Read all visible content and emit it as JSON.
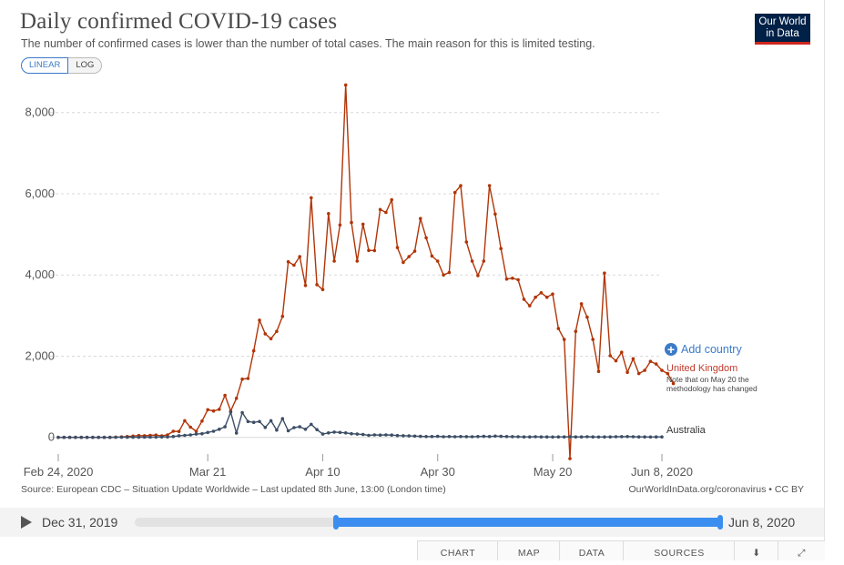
{
  "header": {
    "title": "Daily confirmed COVID-19 cases",
    "subtitle": "The number of confirmed cases is lower than the number of total cases. The main reason for this is limited testing.",
    "logo_line1": "Our World",
    "logo_line2": "in Data"
  },
  "scale_toggle": {
    "linear": "LINEAR",
    "log": "LOG",
    "selected": "LINEAR"
  },
  "chart_data": {
    "type": "line",
    "title": "Daily confirmed COVID-19 cases",
    "x_axis_ticks": [
      "Feb 24, 2020",
      "Mar 21",
      "Apr 10",
      "Apr 30",
      "May 20",
      "Jun 8, 2020"
    ],
    "y_axis_ticks": [
      "0",
      "2,000",
      "4,000",
      "6,000",
      "8,000"
    ],
    "y_tick_values": [
      0,
      2000,
      4000,
      6000,
      8000
    ],
    "ylim": [
      -500,
      8800
    ],
    "x_range_days": [
      0,
      105
    ],
    "x_tick_days": [
      0,
      26,
      46,
      66,
      86,
      105
    ],
    "series": [
      {
        "name": "United Kingdom",
        "color": "#b13507",
        "values": [
          0,
          0,
          0,
          0,
          0,
          0,
          0,
          0,
          0,
          0,
          4,
          10,
          20,
          30,
          45,
          40,
          50,
          55,
          35,
          60,
          150,
          145,
          410,
          250,
          150,
          400,
          680,
          650,
          690,
          1035,
          650,
          960,
          1435,
          1450,
          2130,
          2885,
          2550,
          2430,
          2610,
          2980,
          4325,
          4240,
          4450,
          3740,
          5900,
          3760,
          3640,
          5510,
          4340,
          5230,
          8680,
          5290,
          4340,
          5250,
          4605,
          4600,
          5610,
          5540,
          5850,
          4675,
          4310,
          4450,
          4585,
          5390,
          4915,
          4465,
          4340,
          4000,
          4060,
          6030,
          6200,
          4810,
          4340,
          3985,
          4340,
          6200,
          5500,
          4650,
          3900,
          3920,
          3880,
          3400,
          3240,
          3450,
          3560,
          3450,
          3530,
          2680,
          2410,
          -525,
          2610,
          3290,
          2960,
          2410,
          1625,
          4045,
          2010,
          1885,
          2095,
          1600,
          1935,
          1570,
          1650,
          1870,
          1805,
          1650,
          1570,
          1325
        ],
        "end_label": "United Kingdom",
        "note": "Note that on May 20 the methodology has changed"
      },
      {
        "name": "Australia",
        "color": "#3c4e66",
        "values": [
          0,
          0,
          0,
          0,
          0,
          0,
          0,
          0,
          0,
          0,
          1,
          1,
          2,
          3,
          3,
          4,
          5,
          6,
          9,
          12,
          20,
          40,
          50,
          60,
          80,
          90,
          120,
          150,
          200,
          260,
          620,
          105,
          610,
          390,
          370,
          390,
          245,
          410,
          180,
          460,
          160,
          240,
          260,
          200,
          320,
          190,
          80,
          110,
          130,
          120,
          110,
          90,
          80,
          70,
          50,
          60,
          55,
          60,
          55,
          45,
          40,
          35,
          30,
          25,
          20,
          20,
          25,
          15,
          20,
          15,
          20,
          18,
          15,
          20,
          25,
          20,
          30,
          25,
          20,
          18,
          15,
          12,
          10,
          15,
          12,
          10,
          8,
          10,
          12,
          15,
          10,
          12,
          15,
          10,
          8,
          10,
          12,
          15,
          18,
          20,
          15,
          10,
          12,
          8,
          10,
          12
        ],
        "end_label": "Australia"
      }
    ]
  },
  "add_country": "Add country",
  "footer": {
    "source": "Source: European CDC – Situation Update Worldwide – Last updated 8th June, 13:00 (London time)",
    "owid": "OurWorldInData.org/coronavirus • CC BY"
  },
  "timeline": {
    "start": "Dec 31, 2019",
    "end": "Jun 8, 2020",
    "range_start_fraction": 0.34,
    "range_end_fraction": 1.0
  },
  "tabs": [
    "CHART",
    "MAP",
    "DATA",
    "SOURCES"
  ],
  "icons": [
    "download-icon",
    "share-icon"
  ]
}
